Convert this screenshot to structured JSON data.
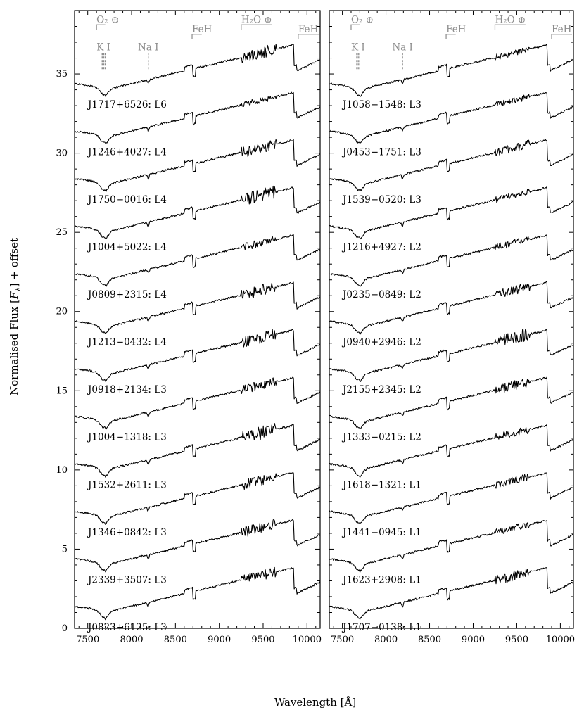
{
  "chart_data": {
    "type": "line",
    "xlabel": "Wavelength [Å]",
    "ylabel": "Normalised Flux [F_λ] + offset",
    "ylabel_parts": {
      "main": "Normalised Flux [",
      "var": "F",
      "sub": "λ",
      "tail": "] + offset"
    },
    "xlim": [
      7350,
      10150
    ],
    "ylim": [
      0,
      39
    ],
    "x_ticks": [
      7500,
      8000,
      8500,
      9000,
      9500,
      10000
    ],
    "y_ticks": [
      0,
      5,
      10,
      15,
      20,
      25,
      30,
      35
    ],
    "features": [
      {
        "id": "o2",
        "label": "O₂ ⊕",
        "kind": "band",
        "x1": 7600,
        "x2": 7700,
        "y": 38.1
      },
      {
        "id": "ki",
        "label": "K I",
        "kind": "doublet",
        "x1": 7665,
        "x2": 7699,
        "y": 36.5
      },
      {
        "id": "nai",
        "label": "Na I",
        "kind": "line",
        "x1": 8190,
        "x2": 8190,
        "y": 36.5
      },
      {
        "id": "feh1",
        "label": "FeH",
        "kind": "band",
        "x1": 8690,
        "x2": 8800,
        "y": 37.5
      },
      {
        "id": "h2o",
        "label": "H₂O ⊕",
        "kind": "band",
        "x1": 9250,
        "x2": 9600,
        "y": 38.1
      },
      {
        "id": "feh2",
        "label": "FeH",
        "kind": "band",
        "x1": 9900,
        "x2": 10150,
        "y": 37.5
      }
    ],
    "panels": [
      {
        "id": "left",
        "series": [
          {
            "name": "J1717+6526: L6",
            "offset": 33.0
          },
          {
            "name": "J1246+4027: L4",
            "offset": 30.0
          },
          {
            "name": "J1750−0016: L4",
            "offset": 27.0
          },
          {
            "name": "J1004+5022: L4",
            "offset": 24.0
          },
          {
            "name": "J0809+2315: L4",
            "offset": 21.0
          },
          {
            "name": "J1213−0432: L4",
            "offset": 18.0
          },
          {
            "name": "J0918+2134: L3",
            "offset": 15.0
          },
          {
            "name": "J1004−1318: L3",
            "offset": 12.0
          },
          {
            "name": "J1532+2611: L3",
            "offset": 9.0
          },
          {
            "name": "J1346+0842: L3",
            "offset": 6.0
          },
          {
            "name": "J2339+3507: L3",
            "offset": 3.0
          },
          {
            "name": "J0823+6125: L3",
            "offset": 0.0
          }
        ]
      },
      {
        "id": "right",
        "series": [
          {
            "name": "J1058−1548: L3",
            "offset": 33.0
          },
          {
            "name": "J0453−1751: L3",
            "offset": 30.0
          },
          {
            "name": "J1539−0520: L3",
            "offset": 27.0
          },
          {
            "name": "J1216+4927: L2",
            "offset": 24.0
          },
          {
            "name": "J0235−0849: L2",
            "offset": 21.0
          },
          {
            "name": "J0940+2946: L2",
            "offset": 18.0
          },
          {
            "name": "J2155+2345: L2",
            "offset": 15.0
          },
          {
            "name": "J1333−0215: L2",
            "offset": 12.0
          },
          {
            "name": "J1618−1321: L1",
            "offset": 9.0
          },
          {
            "name": "J1441−0945: L1",
            "offset": 6.0
          },
          {
            "name": "J1623+2908: L1",
            "offset": 3.0
          },
          {
            "name": "J1707−0138: L1",
            "offset": 0.0
          }
        ]
      }
    ]
  }
}
